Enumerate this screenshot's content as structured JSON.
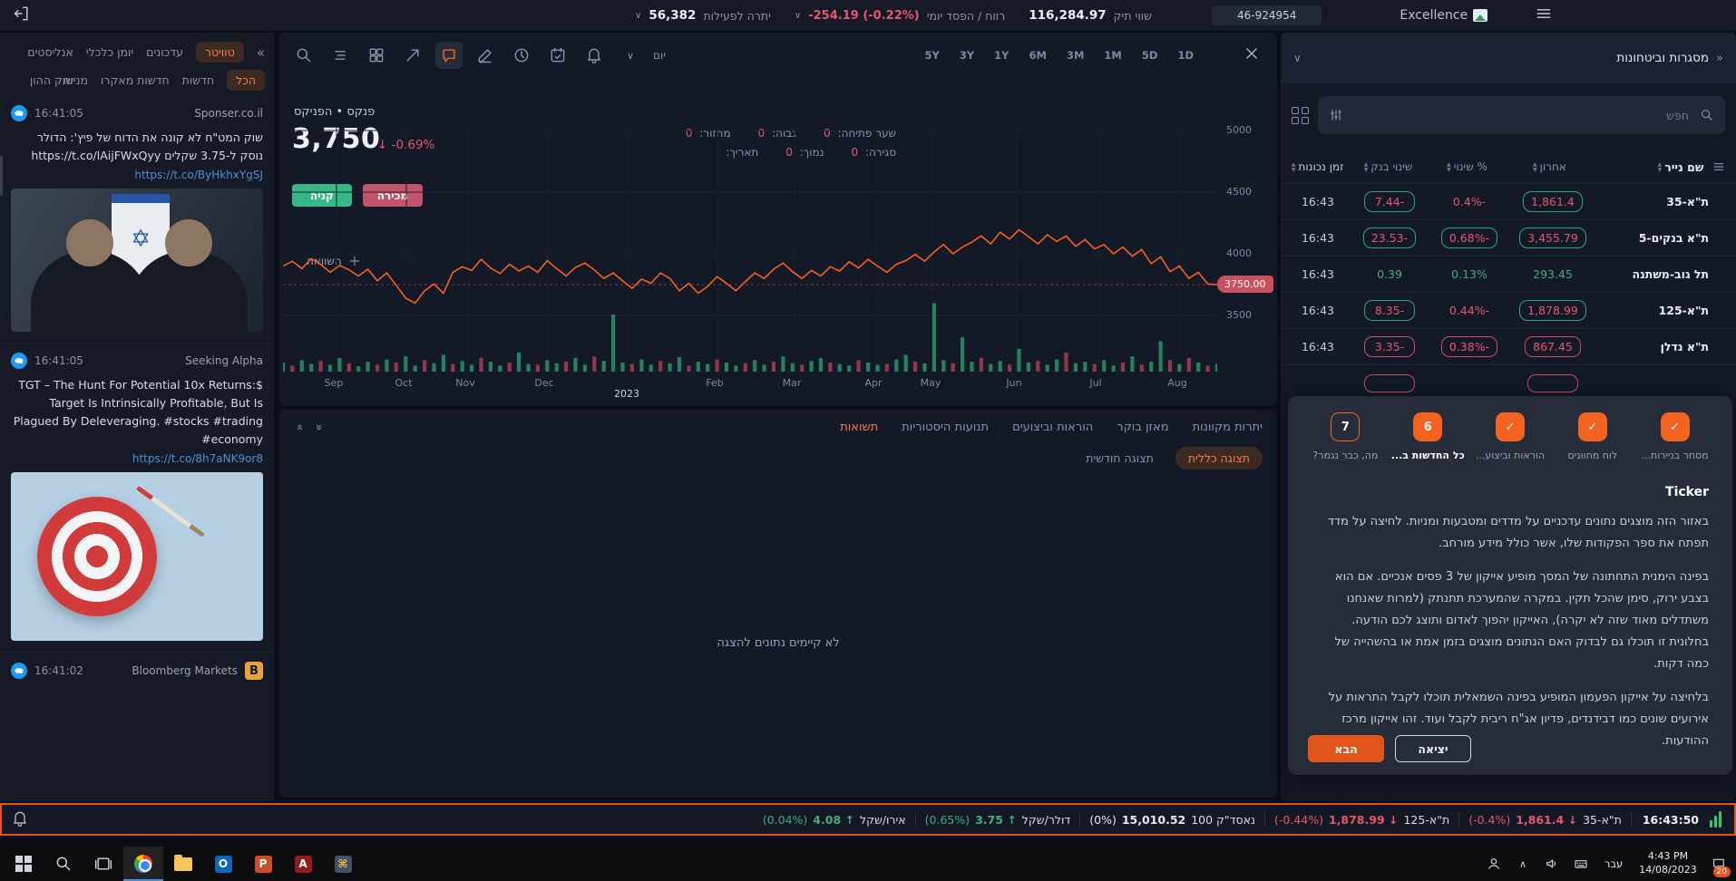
{
  "topbar": {
    "balance_label": "יתרה לפעילות",
    "balance_value": "56,382",
    "pl_label": "רווח / הפסד יומי",
    "pl_value": "-254.19 (-0.22%)",
    "portfolio_label": "שווי תיק",
    "portfolio_value": "116,284.97",
    "account": "46-924954",
    "brand": "Excellence"
  },
  "sidebar": {
    "tabs_row1": [
      "אנליסטים",
      "יומן כלכלי",
      "עדכונים",
      "טוויטר"
    ],
    "tabs_row2": [
      "שוק ההון",
      "מניות",
      "חדשות מאקרו",
      "חדשות",
      "הכל"
    ],
    "tweets": [
      {
        "time": "16:41:05",
        "source": "Sponser.co.il",
        "text": "שוק המט\"ח לא קונה את הדוח של פיץ': הדולר נוסק ל-3.75 שקלים https://t.co/lAijFWxQyy",
        "link": "https://t.co/ByHkhxYgSJ"
      },
      {
        "time": "16:41:05",
        "source": "Seeking Alpha",
        "text": "TGT – The Hunt For Potential 10x Returns:$ Target Is Intrinsically Profitable, But Is Plagued By Deleveraging. #stocks #trading #economy",
        "link": "https://t.co/8h7aNK9or8"
      },
      {
        "time": "16:41:02",
        "source": "Bloomberg Markets"
      }
    ]
  },
  "chart_data": {
    "type": "line",
    "symbol": "פנקס • הפניקס",
    "price": "3,750",
    "change_pct": "-0.69%",
    "interval_label": "יום",
    "timeframes": [
      "5Y",
      "3Y",
      "1Y",
      "6M",
      "3M",
      "1M",
      "5D",
      "1D"
    ],
    "stats": {
      "open_label": "שער פתיחה:",
      "open": "0",
      "high_label": "גבוה:",
      "high": "0",
      "volume_label": "מחזור:",
      "volume": "0",
      "close_label": "סגירה:",
      "close": "0",
      "low_label": "נמוך:",
      "low": "0",
      "date_label": "תאריך:",
      "date": ""
    },
    "buy_label": "קניה",
    "sell_label": "מכירה",
    "compare_label": "השוואה",
    "y_ticks": [
      5000,
      4500,
      4000,
      3500
    ],
    "ylim": [
      3450,
      5090
    ],
    "months": [
      "Sep",
      "Oct",
      "Nov",
      "Dec",
      "Feb",
      "Mar",
      "Apr",
      "May",
      "Jun",
      "Jul",
      "Aug"
    ],
    "year": "2023",
    "last_price_label": "3750.00",
    "line_color": "#f4611e",
    "line": [
      3900,
      3940,
      3880,
      3960,
      3915,
      3850,
      3905,
      3870,
      3820,
      3875,
      3780,
      3845,
      3745,
      3640,
      3600,
      3700,
      3755,
      3680,
      3850,
      3895,
      3865,
      3955,
      3885,
      3840,
      3915,
      3860,
      3900,
      3850,
      3945,
      3880,
      3820,
      3890,
      3925,
      3870,
      3800,
      3845,
      3780,
      3720,
      3795,
      3760,
      3845,
      3800,
      3700,
      3760,
      3680,
      3735,
      3815,
      3760,
      3700,
      3775,
      3845,
      3800,
      3875,
      3925,
      3855,
      3800,
      3865,
      3820,
      3895,
      3860,
      3935,
      3885,
      3955,
      3900,
      3850,
      3915,
      3945,
      3995,
      3940,
      4015,
      4075,
      4000,
      4055,
      4095,
      4145,
      4080,
      4175,
      4120,
      4195,
      4140,
      4080,
      4155,
      4100,
      4145,
      4060,
      4115,
      4040,
      4075,
      4000,
      4055,
      3980,
      4035,
      3920,
      3975,
      3855,
      3900,
      3800,
      3850,
      3755,
      3750
    ],
    "volumes": [
      12,
      -8,
      15,
      10,
      -14,
      9,
      18,
      -11,
      7,
      13,
      -9,
      16,
      -12,
      20,
      8,
      -15,
      11,
      22,
      -10,
      14,
      9,
      -18,
      13,
      8,
      -12,
      25,
      10,
      -9,
      15,
      11,
      -13,
      18,
      9,
      -20,
      14,
      75,
      12,
      -10,
      16,
      9,
      -14,
      11,
      19,
      -8,
      13,
      10,
      -16,
      12,
      8,
      -11,
      15,
      9,
      -13,
      20,
      11,
      -9,
      14,
      18,
      -12,
      10,
      8,
      -15,
      12,
      9,
      -10,
      16,
      22,
      -13,
      11,
      90,
      15,
      -11,
      45,
      13,
      -18,
      10,
      14,
      -9,
      30,
      12,
      -14,
      9,
      16,
      -25,
      11,
      13,
      -10,
      15,
      8,
      -12,
      20,
      -9,
      13,
      40,
      -15,
      10,
      -18,
      12,
      -8,
      10
    ]
  },
  "bottom_panel": {
    "tabs": [
      "תשואות",
      "תנועות היסטוריות",
      "הוראות וביצועים",
      "מאזן בוקר",
      "יתרות מקוונות"
    ],
    "view_tabs": [
      "תצוגה כללית",
      "תצוגה חודשית"
    ],
    "empty": "לא קיימים נתונים להצגה"
  },
  "right_panel": {
    "title": "מסגרות וביטחונות",
    "search_placeholder": "חפש",
    "columns": [
      "שם נייר",
      "אחרון",
      "% שינוי",
      "שינוי בנק",
      "זמן נכונות"
    ],
    "rows": [
      {
        "name": "ת\"א-35",
        "last": "1,861.4",
        "pct": "-0.4%",
        "chg": "-7.44",
        "time": "16:43"
      },
      {
        "name": "ת\"א בנקים-5",
        "last": "3,455.79",
        "pct": "-0.68%",
        "chg": "-23.53",
        "time": "16:43"
      },
      {
        "name": "תל גוב-משתנה",
        "last": "293.45",
        "pct": "0.13%",
        "chg": "0.39",
        "time": "16:43"
      },
      {
        "name": "ת\"א-125",
        "last": "1,878.99",
        "pct": "-0.44%",
        "chg": "-8.35",
        "time": "16:43"
      },
      {
        "name": "ת\"א נדלן",
        "last": "867.45",
        "pct": "-0.38%",
        "chg": "-3.35",
        "time": "16:43"
      }
    ]
  },
  "tutorial": {
    "steps": [
      {
        "label": "מסחר בניירות...",
        "state": "done"
      },
      {
        "label": "לוח מחוונים",
        "state": "done"
      },
      {
        "label": "הוראות וביצוע...",
        "state": "done"
      },
      {
        "label": "כל החדשות ב...",
        "num": "6",
        "state": "current"
      },
      {
        "label": "מה, כבר נגמר?",
        "num": "7",
        "state": "todo"
      }
    ],
    "title": "Ticker",
    "p1": "באזור הזה מוצגים נתונים עדכניים על מדדים ומטבעות ומניות. לחיצה על מדד תפתח את ספר הפקודות שלו, אשר כולל מידע מורחב.",
    "p2": "בפינה הימנית התחתונה של המסך מופיע אייקון של 3 פסים אנכיים. אם הוא בצבע ירוק, סימן שהכל תקין. במקרה שהמערכת תתנתק (למרות שאנחנו משתדלים מאוד שזה לא יקרה), האייקון יהפוך לאדום ותוצג לכם הודעה. בחלונית זו תוכלו גם לבדוק האם הנתונים מוצגים בזמן אמת או בהשהייה של כמה דקות.",
    "p3": "בלחיצה על אייקון הפעמון המופיע בפינה השמאלית תוכלו לקבל התראות על אירועים שונים כמו דבידנדים, פדיון אג\"ח ריבית לקבל ועוד. זהו אייקון מרכז ההודעות.",
    "next_label": "הבא",
    "exit_label": "יציאה"
  },
  "ticker": {
    "items": [
      {
        "name": "אירו/שקל",
        "value": "4.08",
        "arrow": "↑",
        "pct": "(0.04%)",
        "trend": "up"
      },
      {
        "name": "דולר/שקל",
        "value": "3.75",
        "arrow": "↑",
        "pct": "(0.65%)",
        "trend": "up"
      },
      {
        "name": "נאסד\"ק 100",
        "value": "15,010.52",
        "arrow": "",
        "pct": "(0%)",
        "trend": "flat"
      },
      {
        "name": "ת\"א-125",
        "value": "1,878.99",
        "arrow": "↓",
        "pct": "(-0.44%)",
        "trend": "down"
      },
      {
        "name": "ת\"א-35",
        "value": "1,861.4",
        "arrow": "↓",
        "pct": "(-0.4%)",
        "trend": "down"
      }
    ],
    "time": "16:43:50"
  },
  "taskbar": {
    "lang": "עבר",
    "time": "4:43 PM",
    "date": "14/08/2023",
    "badge": "20"
  }
}
